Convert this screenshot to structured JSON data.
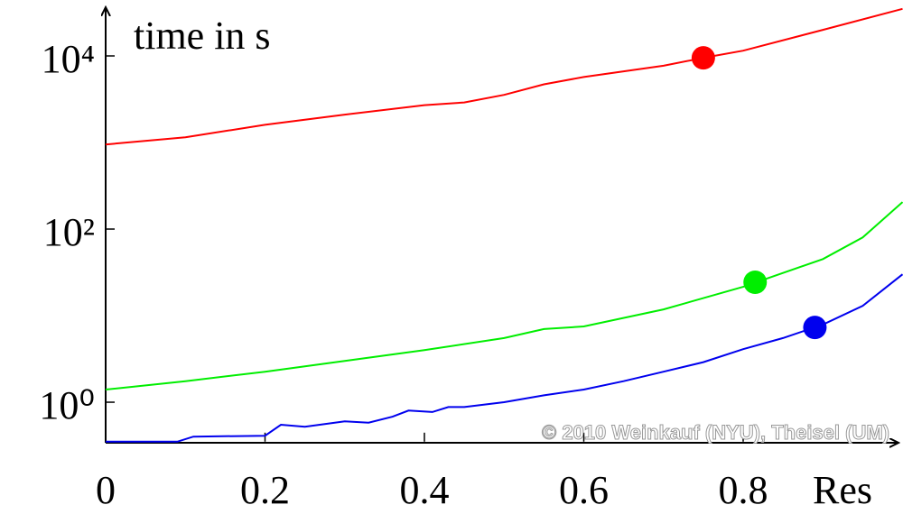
{
  "chart_data": {
    "type": "line",
    "y_label": "time in s",
    "x_label": "Res",
    "annotation": "© 2010 Weinkauf (NYU), Theisel (UM)",
    "log_y": true,
    "xlim": [
      0,
      1.0
    ],
    "ylim": [
      0.35,
      36000
    ],
    "xticks": [
      0,
      0.2,
      0.4,
      0.6,
      0.8
    ],
    "yticks": [
      {
        "value": 1,
        "label": "10⁰"
      },
      {
        "value": 100,
        "label": "10²"
      },
      {
        "value": 10000,
        "label": "10⁴"
      }
    ],
    "series": [
      {
        "color": "#ff0000",
        "x": [
          0,
          0.1,
          0.2,
          0.3,
          0.4,
          0.45,
          0.5,
          0.55,
          0.6,
          0.7,
          0.75,
          0.8,
          0.9,
          1.0
        ],
        "values": [
          950,
          1150,
          1600,
          2100,
          2700,
          2900,
          3550,
          4700,
          5700,
          7700,
          9500,
          11500,
          20000,
          35000
        ],
        "marker": {
          "x": 0.75,
          "y": 9500
        }
      },
      {
        "color": "#00ee00",
        "x": [
          0,
          0.1,
          0.2,
          0.3,
          0.4,
          0.5,
          0.55,
          0.6,
          0.7,
          0.8,
          0.9,
          0.95,
          1.0
        ],
        "values": [
          1.4,
          1.75,
          2.25,
          3.0,
          4.0,
          5.5,
          7.0,
          7.5,
          11.8,
          21.5,
          45,
          80,
          205
        ],
        "marker": {
          "x": 0.815,
          "y": 24.3
        }
      },
      {
        "color": "#0000ee",
        "x": [
          0,
          0.09,
          0.11,
          0.2,
          0.22,
          0.25,
          0.3,
          0.33,
          0.36,
          0.38,
          0.41,
          0.43,
          0.45,
          0.5,
          0.55,
          0.6,
          0.65,
          0.7,
          0.75,
          0.8,
          0.85,
          0.9,
          0.95,
          1.0
        ],
        "values": [
          0.35,
          0.35,
          0.4,
          0.41,
          0.55,
          0.52,
          0.6,
          0.58,
          0.68,
          0.8,
          0.77,
          0.88,
          0.88,
          1.0,
          1.2,
          1.4,
          1.75,
          2.25,
          2.9,
          4.1,
          5.5,
          7.9,
          13,
          30
        ],
        "marker": {
          "x": 0.89,
          "y": 7.3
        }
      }
    ]
  }
}
